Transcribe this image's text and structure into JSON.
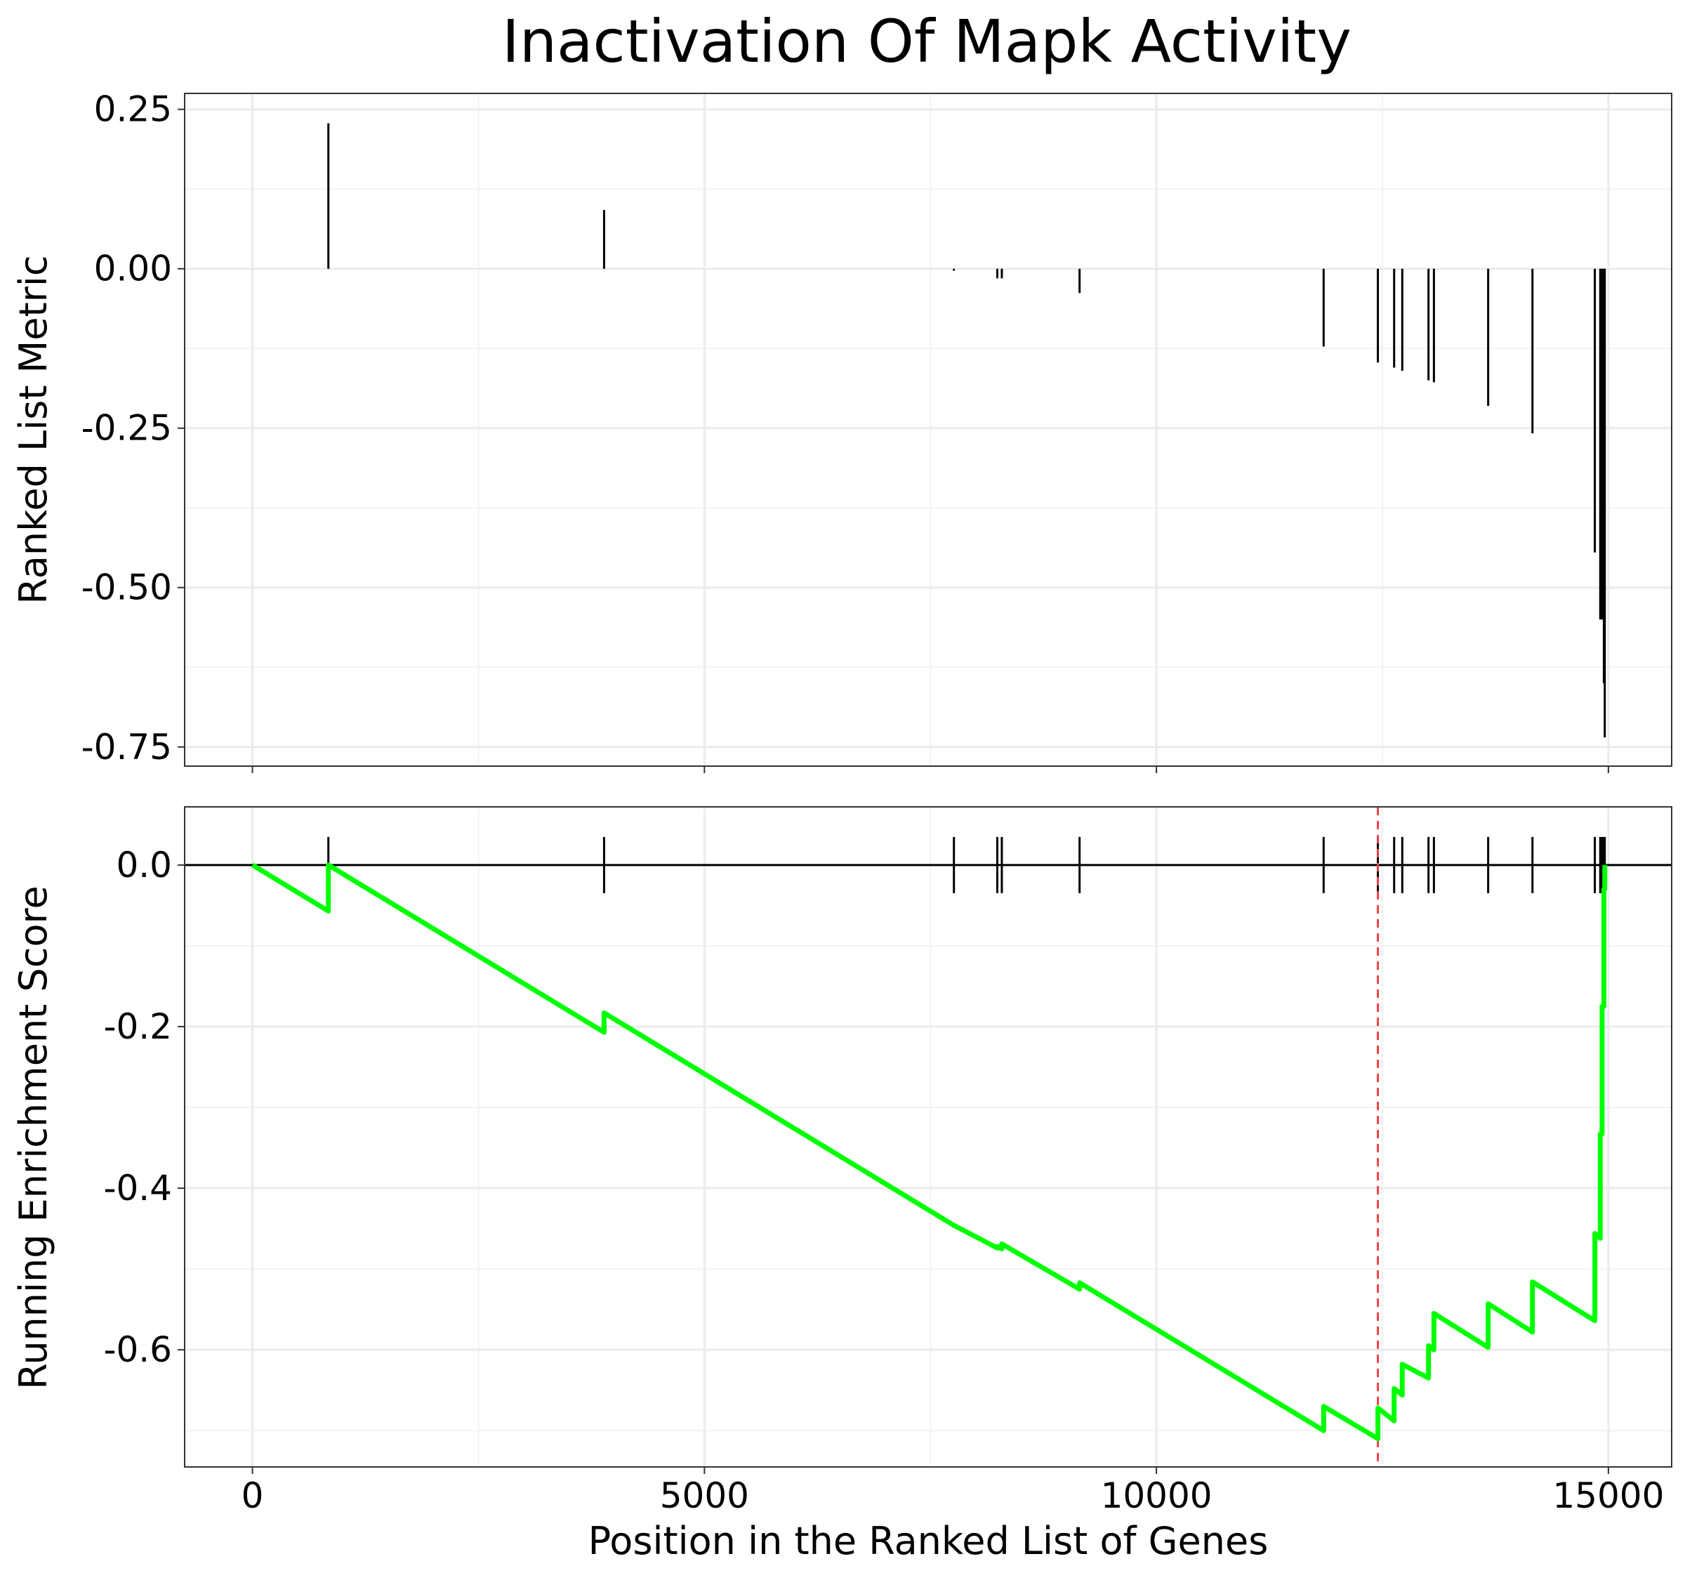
{
  "chart_data": [
    {
      "type": "bar",
      "panel": "top",
      "title": "Inactivation Of Mapk Activity",
      "xlabel": "",
      "ylabel": "Ranked List Metric",
      "xlim": [
        -750,
        15700
      ],
      "ylim": [
        -0.78,
        0.275
      ],
      "x_ticks": [
        0,
        5000,
        10000,
        15000
      ],
      "y_ticks": [
        0.25,
        0.0,
        -0.25,
        -0.5,
        -0.75
      ],
      "y_tick_labels": [
        "0.25",
        "0.00",
        "-0.25",
        "-0.50",
        "-0.75"
      ],
      "grid": true,
      "bars": {
        "x": [
          840,
          3890,
          7760,
          8240,
          8290,
          9150,
          11850,
          12450,
          12630,
          12720,
          13010,
          13070,
          13670,
          14160,
          14850,
          14910,
          14930,
          14950,
          14960
        ],
        "values": [
          0.228,
          0.092,
          -0.003,
          -0.015,
          -0.015,
          -0.038,
          -0.122,
          -0.147,
          -0.155,
          -0.16,
          -0.175,
          -0.178,
          -0.215,
          -0.258,
          -0.445,
          -0.55,
          -0.55,
          -0.65,
          -0.735
        ]
      }
    },
    {
      "type": "line",
      "panel": "bottom",
      "title": "",
      "xlabel": "Position in the Ranked List of Genes",
      "ylabel": "Running Enrichment Score",
      "xlim": [
        -750,
        15700
      ],
      "ylim": [
        -0.745,
        0.072
      ],
      "x_ticks": [
        0,
        5000,
        10000,
        15000
      ],
      "x_tick_labels": [
        "0",
        "5000",
        "10000",
        "15000"
      ],
      "y_ticks": [
        0.0,
        -0.2,
        -0.4,
        -0.6
      ],
      "y_tick_labels": [
        "0.0",
        "-0.2",
        "-0.4",
        "-0.6"
      ],
      "grid": true,
      "line_color": "#00FF00",
      "zero_line_color": "#000000",
      "max_deviation_x": 12450,
      "max_deviation_color": "#EE4444",
      "hit_positions": [
        840,
        3890,
        7760,
        8240,
        8290,
        9150,
        11850,
        12450,
        12630,
        12720,
        13010,
        13070,
        13670,
        14160,
        14850,
        14910,
        14930,
        14950,
        14960
      ],
      "series": [
        {
          "name": "Running Enrichment Score",
          "x": [
            0,
            840,
            840,
            3890,
            3890,
            7760,
            7760,
            8240,
            8240,
            8290,
            8290,
            9150,
            9150,
            11850,
            11850,
            12450,
            12450,
            12630,
            12630,
            12720,
            12720,
            13010,
            13010,
            13070,
            13070,
            13670,
            13670,
            14160,
            14160,
            14850,
            14850,
            14910,
            14910,
            14930,
            14930,
            14950,
            14950,
            14960,
            14960
          ],
          "y": [
            0,
            -0.057,
            0.0,
            -0.207,
            -0.183,
            -0.446,
            -0.446,
            -0.474,
            -0.472,
            -0.475,
            -0.469,
            -0.525,
            -0.517,
            -0.7,
            -0.67,
            -0.71,
            -0.672,
            -0.688,
            -0.648,
            -0.656,
            -0.618,
            -0.635,
            -0.595,
            -0.6,
            -0.555,
            -0.597,
            -0.543,
            -0.578,
            -0.516,
            -0.564,
            -0.456,
            -0.462,
            -0.333,
            -0.333,
            -0.175,
            -0.175,
            -0.03,
            -0.03,
            0.0
          ]
        }
      ]
    }
  ]
}
